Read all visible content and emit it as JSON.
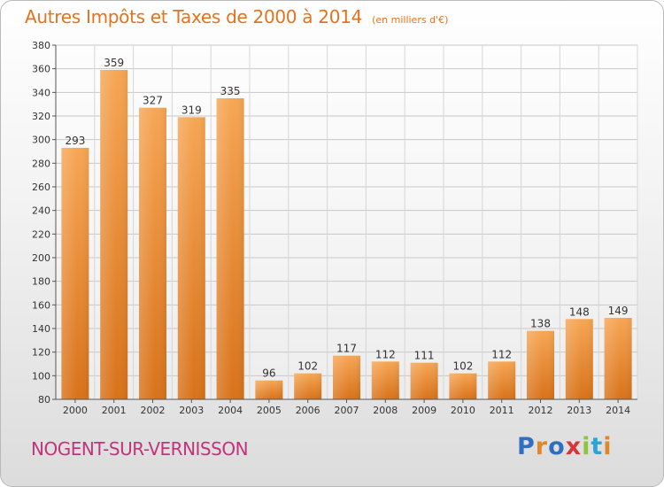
{
  "header": {
    "title": "Autres Impôts et Taxes de 2000 à 2014",
    "unit": "(en milliers d'€)"
  },
  "footer": {
    "location": "NOGENT-SUR-VERNISSON",
    "logo_text": "Proxiti",
    "logo_colors": [
      "#2f6fc0",
      "#e2862a",
      "#2f6fc0",
      "#d6373a",
      "#8cc63f",
      "#2aa5d8",
      "#e2862a"
    ]
  },
  "chart_data": {
    "type": "bar",
    "title": "Autres Impôts et Taxes de 2000 à 2014",
    "subtitle": "(en milliers d'€)",
    "xlabel": "",
    "ylabel": "",
    "categories": [
      "2000",
      "2001",
      "2002",
      "2003",
      "2004",
      "2005",
      "2006",
      "2007",
      "2008",
      "2009",
      "2010",
      "2011",
      "2012",
      "2013",
      "2014"
    ],
    "values": [
      293,
      359,
      327,
      319,
      335,
      96,
      102,
      117,
      112,
      111,
      102,
      112,
      138,
      148,
      149
    ],
    "ylim": [
      80,
      380
    ],
    "yticks": [
      80,
      100,
      120,
      140,
      160,
      180,
      200,
      220,
      240,
      260,
      280,
      300,
      320,
      340,
      360,
      380
    ],
    "grid": true,
    "bar_color": "#f0922e",
    "legend": "none"
  }
}
